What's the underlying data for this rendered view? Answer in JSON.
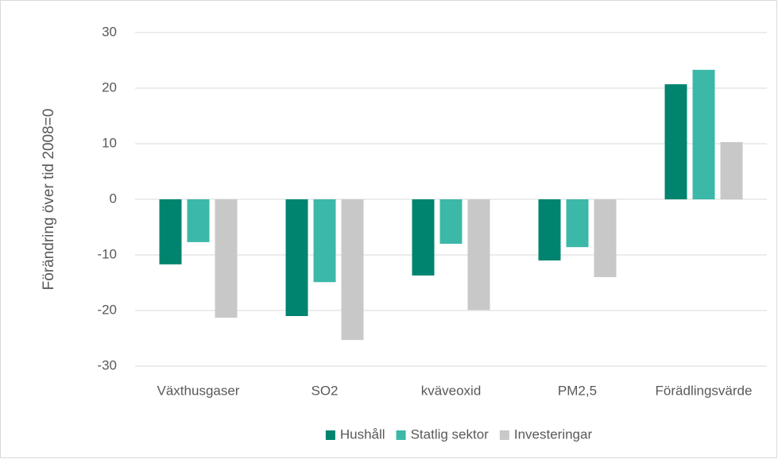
{
  "chart_data": {
    "type": "bar",
    "y_label": "Förändring över tid 2008=0",
    "categories": [
      "Växthusgaser",
      "SO2",
      "kväveoxid",
      "PM2,5",
      "Förädlingsvärde"
    ],
    "series": [
      {
        "name": "Hushåll",
        "color": "#00846f",
        "values": [
          -11.7,
          -21,
          -13.7,
          -11,
          20.7
        ]
      },
      {
        "name": "Statlig sektor",
        "color": "#3cb8a8",
        "values": [
          -7.7,
          -14.9,
          -8,
          -8.6,
          23.3
        ]
      },
      {
        "name": "Investeringar",
        "color": "#c8c8c8",
        "values": [
          -21.3,
          -25.3,
          -19.9,
          -14,
          10.3
        ]
      }
    ],
    "ylim": [
      -30,
      30
    ],
    "yticks": [
      -30,
      -20,
      -10,
      0,
      10,
      20,
      30
    ],
    "grid": true,
    "legend": "bottom"
  }
}
